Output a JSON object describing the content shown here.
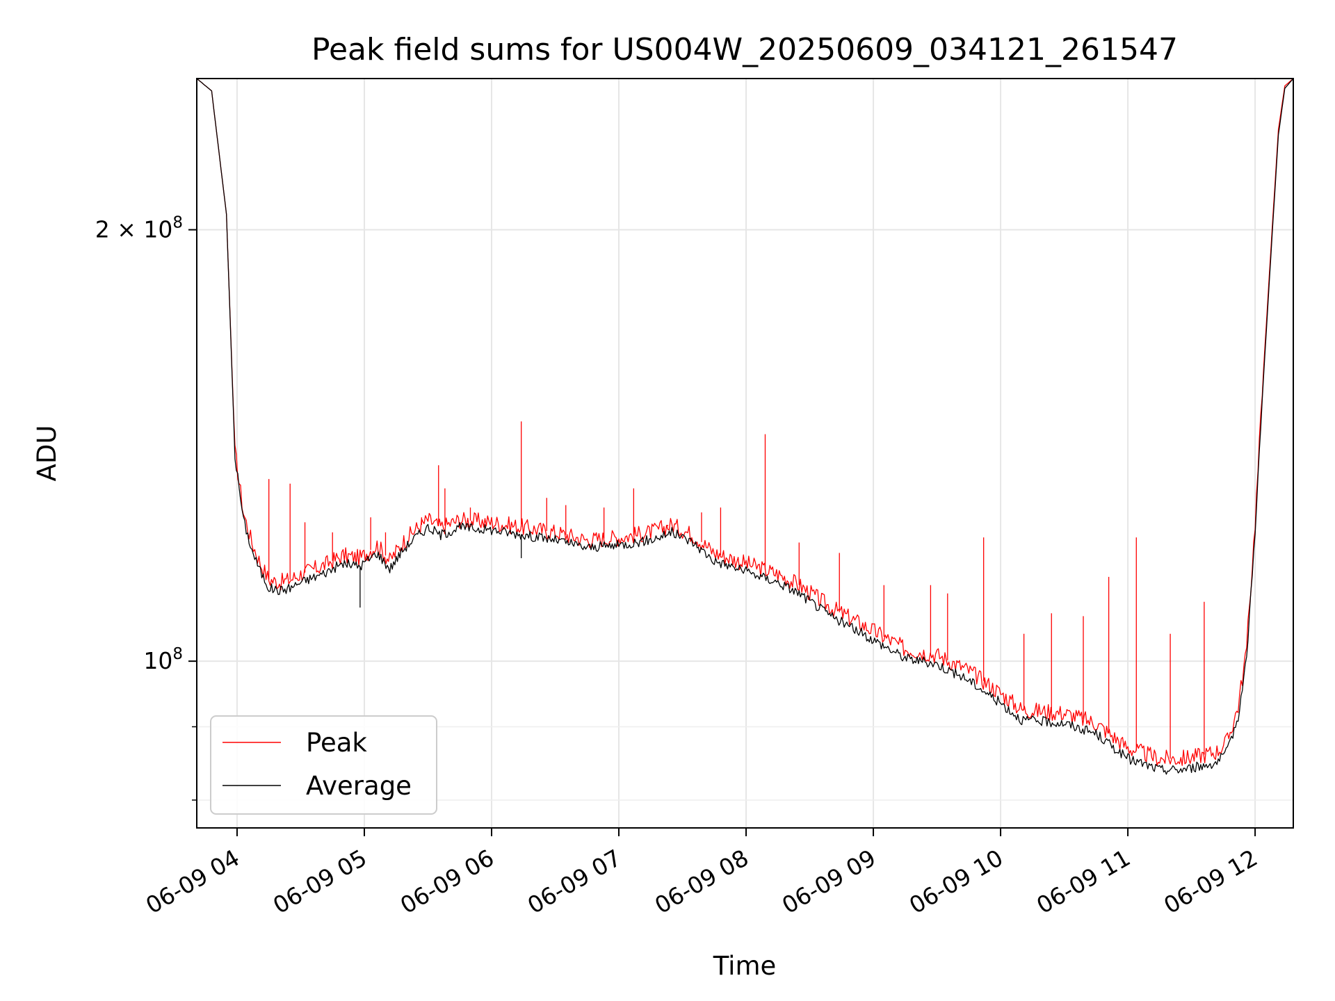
{
  "chart_data": {
    "type": "line",
    "title": "Peak field sums for US004W_20250609_034121_261547",
    "xlabel": "Time",
    "ylabel": "ADU",
    "y_scale": "log",
    "xlim": [
      "06-09 03:41",
      "06-09 12:18"
    ],
    "ylim": [
      76500000,
      255000000
    ],
    "grid": true,
    "legend": "lower-left",
    "x_ticks": [
      "06-09 04",
      "06-09 05",
      "06-09 06",
      "06-09 07",
      "06-09 08",
      "06-09 09",
      "06-09 10",
      "06-09 11",
      "06-09 12"
    ],
    "y_ticks": [
      {
        "value": 200000000,
        "base": "2 × 10",
        "exp": "8"
      },
      {
        "value": 100000000,
        "base": "10",
        "exp": "8"
      }
    ],
    "series": [
      {
        "name": "Peak",
        "color": "#ff0000",
        "x": [
          "06-09 03:41",
          "06-09 03:48",
          "06-09 03:55",
          "06-09 03:59",
          "06-09 04:03",
          "06-09 04:07",
          "06-09 04:11",
          "06-09 04:15",
          "06-09 04:20",
          "06-09 04:25",
          "06-09 04:30",
          "06-09 04:40",
          "06-09 04:50",
          "06-09 04:58",
          "06-09 05:06",
          "06-09 05:12",
          "06-09 05:18",
          "06-09 05:24",
          "06-09 05:30",
          "06-09 05:36",
          "06-09 05:45",
          "06-09 06:00",
          "06-09 06:15",
          "06-09 06:30",
          "06-09 06:45",
          "06-09 07:00",
          "06-09 07:15",
          "06-09 07:25",
          "06-09 07:35",
          "06-09 07:45",
          "06-09 08:00",
          "06-09 08:15",
          "06-09 08:25",
          "06-09 08:40",
          "06-09 09:00",
          "06-09 09:15",
          "06-09 09:30",
          "06-09 09:45",
          "06-09 10:00",
          "06-09 10:10",
          "06-09 10:30",
          "06-09 10:45",
          "06-09 11:00",
          "06-09 11:15",
          "06-09 11:25",
          "06-09 11:35",
          "06-09 11:42",
          "06-09 11:47",
          "06-09 11:52",
          "06-09 11:56",
          "06-09 12:00",
          "06-09 12:04",
          "06-09 12:08",
          "06-09 12:11",
          "06-09 12:14",
          "06-09 12:18"
        ],
        "y": [
          255000000,
          250000000,
          205000000,
          140000000,
          127000000,
          121000000,
          117000000,
          114000000,
          113500000,
          114000000,
          115000000,
          116500000,
          118500000,
          118000000,
          120500000,
          117500000,
          121000000,
          123500000,
          125500000,
          124000000,
          125500000,
          125000000,
          124000000,
          123000000,
          121500000,
          122000000,
          123000000,
          124500000,
          122500000,
          119000000,
          117000000,
          115000000,
          113000000,
          109000000,
          105000000,
          102000000,
          101000000,
          98500000,
          95000000,
          92500000,
          92000000,
          90500000,
          87000000,
          85500000,
          85500000,
          86000000,
          86500000,
          88000000,
          93000000,
          102000000,
          125000000,
          160000000,
          200000000,
          235000000,
          252000000,
          255000000
        ],
        "spikes": [
          [
            "06-09 04:15",
            134000000
          ],
          [
            "06-09 04:25",
            133000000
          ],
          [
            "06-09 04:32",
            125000000
          ],
          [
            "06-09 04:45",
            123000000
          ],
          [
            "06-09 05:03",
            126000000
          ],
          [
            "06-09 05:10",
            123000000
          ],
          [
            "06-09 05:27",
            126000000
          ],
          [
            "06-09 05:35",
            137000000
          ],
          [
            "06-09 05:38",
            132000000
          ],
          [
            "06-09 05:50",
            128000000
          ],
          [
            "06-09 06:14",
            147000000
          ],
          [
            "06-09 06:26",
            130000000
          ],
          [
            "06-09 06:35",
            128500000
          ],
          [
            "06-09 06:53",
            128000000
          ],
          [
            "06-09 07:07",
            132000000
          ],
          [
            "06-09 07:23",
            124500000
          ],
          [
            "06-09 07:39",
            127000000
          ],
          [
            "06-09 07:48",
            128000000
          ],
          [
            "06-09 08:09",
            144000000
          ],
          [
            "06-09 08:25",
            121000000
          ],
          [
            "06-09 08:44",
            119000000
          ],
          [
            "06-09 09:05",
            113000000
          ],
          [
            "06-09 09:27",
            113000000
          ],
          [
            "06-09 09:35",
            111500000
          ],
          [
            "06-09 09:52",
            122000000
          ],
          [
            "06-09 10:11",
            104500000
          ],
          [
            "06-09 10:24",
            108000000
          ],
          [
            "06-09 10:39",
            107500000
          ],
          [
            "06-09 10:51",
            114500000
          ],
          [
            "06-09 11:04",
            122000000
          ],
          [
            "06-09 11:20",
            104500000
          ],
          [
            "06-09 11:36",
            110000000
          ]
        ]
      },
      {
        "name": "Average",
        "color": "#000000",
        "x": [
          "06-09 03:41",
          "06-09 03:48",
          "06-09 03:55",
          "06-09 03:59",
          "06-09 04:03",
          "06-09 04:07",
          "06-09 04:11",
          "06-09 04:15",
          "06-09 04:20",
          "06-09 04:25",
          "06-09 04:30",
          "06-09 04:40",
          "06-09 04:50",
          "06-09 04:58",
          "06-09 05:06",
          "06-09 05:12",
          "06-09 05:18",
          "06-09 05:24",
          "06-09 05:30",
          "06-09 05:36",
          "06-09 05:45",
          "06-09 06:00",
          "06-09 06:15",
          "06-09 06:30",
          "06-09 06:45",
          "06-09 07:00",
          "06-09 07:15",
          "06-09 07:25",
          "06-09 07:35",
          "06-09 07:45",
          "06-09 08:00",
          "06-09 08:15",
          "06-09 08:25",
          "06-09 08:40",
          "06-09 09:00",
          "06-09 09:15",
          "06-09 09:30",
          "06-09 09:45",
          "06-09 10:00",
          "06-09 10:10",
          "06-09 10:30",
          "06-09 10:45",
          "06-09 11:00",
          "06-09 11:15",
          "06-09 11:25",
          "06-09 11:35",
          "06-09 11:42",
          "06-09 11:47",
          "06-09 11:52",
          "06-09 11:56",
          "06-09 12:00",
          "06-09 12:04",
          "06-09 12:08",
          "06-09 12:11",
          "06-09 12:14",
          "06-09 12:18"
        ],
        "y": [
          255000000,
          250000000,
          205000000,
          139000000,
          125500000,
          119500000,
          115500000,
          112500000,
          112000000,
          112500000,
          113500000,
          115000000,
          117000000,
          116500000,
          119000000,
          116000000,
          119500000,
          122000000,
          124000000,
          122500000,
          124000000,
          123500000,
          122500000,
          121500000,
          120000000,
          120500000,
          121500000,
          123000000,
          121000000,
          117500000,
          115500000,
          113500000,
          111500000,
          107500000,
          103500000,
          100500000,
          99500000,
          97000000,
          93500000,
          91000000,
          90500000,
          89000000,
          85500000,
          84000000,
          84000000,
          84500000,
          85000000,
          86500000,
          91500000,
          100500000,
          123500000,
          158000000,
          198000000,
          233000000,
          251000000,
          255000000
        ],
        "spikes": [
          [
            "06-09 04:58",
            109000000
          ],
          [
            "06-09 06:14",
            118000000
          ]
        ]
      }
    ]
  }
}
